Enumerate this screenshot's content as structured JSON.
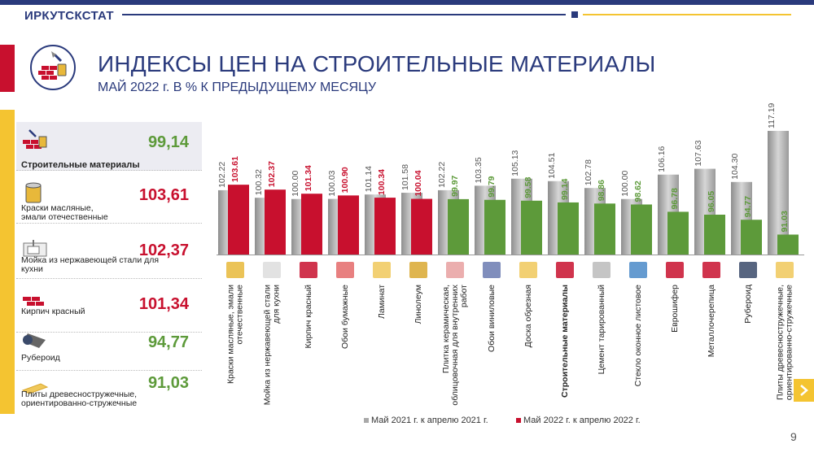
{
  "header": {
    "brand": "ИРКУТСКСТАТ",
    "title": "ИНДЕКСЫ ЦЕН НА СТРОИТЕЛЬНЫЕ МАТЕРИАЛЫ",
    "subtitle": "МАЙ 2022 г. В % К ПРЕДЫДУЩЕМУ МЕСЯЦУ",
    "page_number": "9"
  },
  "colors": {
    "brand_blue": "#2a3a7c",
    "red": "#c8102e",
    "green": "#5d9a3a",
    "gray": "#a9a9a9",
    "gold": "#f4c431"
  },
  "summary_panel": {
    "items": [
      {
        "label": "Строительные материалы",
        "value": "99,14",
        "status": "green",
        "icon": "bricks-paint-icon",
        "highlight": true
      },
      {
        "label": "Краски масляные,\nэмали отечественные",
        "value": "103,61",
        "status": "red",
        "icon": "paint-can-icon"
      },
      {
        "label": "Мойка из нержавеющей стали для\nкухни",
        "value": "102,37",
        "status": "red",
        "icon": "sink-icon"
      },
      {
        "label": "Кирпич красный",
        "value": "101,34",
        "status": "red",
        "icon": "brick-icon"
      },
      {
        "label": "Рубероид",
        "value": "94,77",
        "status": "green",
        "icon": "roofing-roll-icon"
      },
      {
        "label": "Плиты древесностружечные,\nориентированно-стружечные",
        "value": "91,03",
        "status": "green",
        "icon": "board-icon"
      }
    ]
  },
  "chart_data": {
    "type": "bar",
    "title": "ИНДЕКСЫ ЦЕН НА СТРОИТЕЛЬНЫЕ МАТЕРИАЛЫ",
    "subtitle": "МАЙ 2022 г. В % К ПРЕДЫДУЩЕМУ МЕСЯЦУ",
    "ylim": [
      86,
      118
    ],
    "grid": false,
    "legend_position": "bottom",
    "categories": [
      "Краски масляные, эмали\nотечественные",
      "Мойка из нержавеющей стали\nдля кухни",
      "Кирпич красный",
      "Обои бумажные",
      "Ламинат",
      "Линолеум",
      "Плитка керамическая,\nоблицовочная для внутренних\nработ",
      "Обои виниловые",
      "Доска обрезная",
      "Строительные материалы",
      "Цемент тарированный",
      "Стекло оконное листовое",
      "Еврошифер",
      "Металлочерепица",
      "Рубероид",
      "Плиты древесностружечные,\nориентированно-стружечные"
    ],
    "category_icons": [
      "paint-can-icon",
      "sink-icon",
      "brick-icon",
      "wallpaper-icon",
      "laminate-icon",
      "linoleum-icon",
      "tile-icon",
      "vinyl-wallpaper-icon",
      "plank-icon",
      "bricks-paint-icon",
      "cement-icon",
      "window-glass-icon",
      "slate-icon",
      "metal-tile-icon",
      "roofing-roll-icon",
      "board-icon"
    ],
    "bold_category": "Строительные материалы",
    "series": [
      {
        "name": "Май 2021 г. к апрелю 2021 г.",
        "color": "#a9a9a9",
        "values": [
          102.22,
          100.32,
          100.0,
          100.03,
          101.14,
          101.58,
          102.22,
          103.35,
          105.13,
          104.51,
          102.78,
          100.0,
          106.16,
          107.63,
          104.3,
          117.19
        ],
        "labels": [
          "102.22",
          "100.32",
          "100.00",
          "100.03",
          "101.14",
          "101.58",
          "102.22",
          "103.35",
          "105.13",
          "104.51",
          "102.78",
          "100.00",
          "106.16",
          "107.63",
          "104.30",
          "117.19"
        ]
      },
      {
        "name": "Май 2022 г. к апрелю 2022 г.",
        "color": "#c8102e",
        "values": [
          103.61,
          102.37,
          101.34,
          100.9,
          100.34,
          100.04,
          99.97,
          99.79,
          99.58,
          99.14,
          98.86,
          98.62,
          96.78,
          96.05,
          94.77,
          91.03
        ],
        "labels": [
          "103.61",
          "102.37",
          "101.34",
          "100.90",
          "100.34",
          "100.04",
          "99.97",
          "99.79",
          "99.58",
          "99.14",
          "98.86",
          "98.62",
          "96.78",
          "96.05",
          "94.77",
          "91.03"
        ],
        "point_colors": [
          "#c8102e",
          "#c8102e",
          "#c8102e",
          "#c8102e",
          "#c8102e",
          "#c8102e",
          "#5d9a3a",
          "#5d9a3a",
          "#5d9a3a",
          "#5d9a3a",
          "#5d9a3a",
          "#5d9a3a",
          "#5d9a3a",
          "#5d9a3a",
          "#5d9a3a",
          "#5d9a3a"
        ]
      }
    ]
  }
}
